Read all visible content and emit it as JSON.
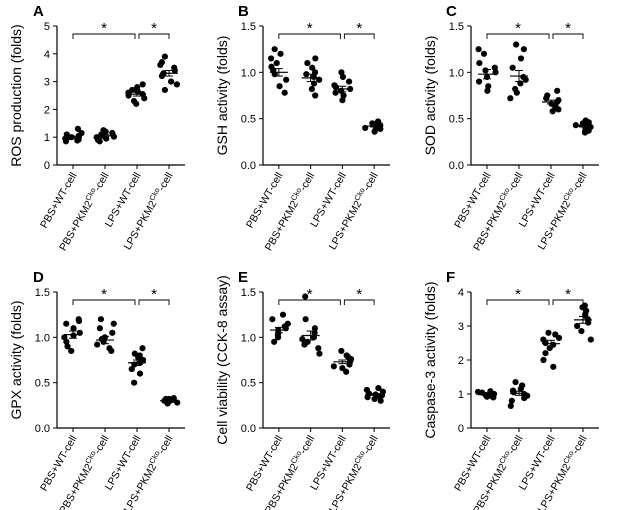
{
  "chart_data": [
    {
      "type": "scatter",
      "panel": "A",
      "ylabel": "ROS production (folds)",
      "ylim": [
        0,
        5
      ],
      "yticks": [
        0,
        1,
        2,
        3,
        4,
        5
      ],
      "ytick_labels": [
        "0",
        "1",
        "2",
        "3",
        "4",
        "5"
      ],
      "categories": [
        "PBS+WT-cell",
        "PBS+PKM2Cko-cell",
        "LPS+WT-cell",
        "LPS+PKM2Cko-cell"
      ],
      "series": [
        {
          "values": [
            0.88,
            0.95,
            1.0,
            1.05,
            1.1,
            0.92,
            0.85,
            1.15,
            1.0,
            1.3
          ]
        },
        {
          "values": [
            0.95,
            1.05,
            1.1,
            1.2,
            0.9,
            1.0,
            1.15,
            0.85,
            1.25,
            1.02
          ]
        },
        {
          "values": [
            2.2,
            2.3,
            2.4,
            2.5,
            2.55,
            2.6,
            2.65,
            2.7,
            2.8,
            2.9
          ]
        },
        {
          "values": [
            2.7,
            2.9,
            3.0,
            3.2,
            3.3,
            3.4,
            3.5,
            3.6,
            3.7,
            3.9
          ]
        }
      ],
      "means": [
        1.0,
        1.05,
        2.55,
        3.3
      ],
      "sems": [
        0.04,
        0.04,
        0.07,
        0.1
      ],
      "significance": [
        {
          "from": 0,
          "to": 2,
          "label": "*"
        },
        {
          "from": 2,
          "to": 3,
          "label": "*"
        }
      ]
    },
    {
      "type": "scatter",
      "panel": "B",
      "ylabel": "GSH activity (folds)",
      "ylim": [
        0,
        1.5
      ],
      "yticks": [
        0,
        0.5,
        1.0,
        1.5
      ],
      "ytick_labels": [
        "0.0",
        "0.5",
        "1.0",
        "1.5"
      ],
      "categories": [
        "PBS+WT-cell",
        "PBS+PKM2Cko-cell",
        "LPS+WT-cell",
        "LPS+PKM2Cko-cell"
      ],
      "series": [
        {
          "values": [
            0.78,
            0.85,
            0.92,
            0.98,
            1.02,
            1.06,
            1.1,
            1.15,
            1.2,
            1.25
          ]
        },
        {
          "values": [
            0.75,
            0.82,
            0.88,
            0.92,
            0.95,
            0.98,
            1.0,
            1.05,
            1.1,
            1.15
          ]
        },
        {
          "values": [
            0.7,
            0.75,
            0.78,
            0.8,
            0.82,
            0.84,
            0.86,
            0.9,
            0.95,
            1.0
          ]
        },
        {
          "values": [
            0.36,
            0.38,
            0.39,
            0.4,
            0.41,
            0.42,
            0.43,
            0.44,
            0.45,
            0.47
          ]
        }
      ],
      "means": [
        1.0,
        0.94,
        0.82,
        0.42
      ],
      "sems": [
        0.04,
        0.04,
        0.03,
        0.01
      ],
      "significance": [
        {
          "from": 0,
          "to": 2,
          "label": "*"
        },
        {
          "from": 2,
          "to": 3,
          "label": "*"
        }
      ]
    },
    {
      "type": "scatter",
      "panel": "C",
      "ylabel": "SOD activity (folds)",
      "ylim": [
        0,
        1.5
      ],
      "yticks": [
        0,
        0.5,
        1.0,
        1.5
      ],
      "ytick_labels": [
        "0.0",
        "0.5",
        "1.0",
        "1.5"
      ],
      "categories": [
        "PBS+WT-cell",
        "PBS+PKM2Cko-cell",
        "LPS+WT-cell",
        "LPS+PKM2Cko-cell"
      ],
      "series": [
        {
          "values": [
            0.8,
            0.85,
            0.9,
            0.95,
            1.0,
            1.02,
            1.05,
            1.1,
            1.2,
            1.25
          ]
        },
        {
          "values": [
            0.72,
            0.78,
            0.82,
            0.88,
            0.92,
            0.95,
            1.05,
            1.15,
            1.25,
            1.3
          ]
        },
        {
          "values": [
            0.58,
            0.6,
            0.62,
            0.64,
            0.66,
            0.68,
            0.7,
            0.72,
            0.75,
            0.8
          ]
        },
        {
          "values": [
            0.35,
            0.37,
            0.38,
            0.4,
            0.41,
            0.42,
            0.43,
            0.45,
            0.46,
            0.48
          ]
        }
      ],
      "means": [
        0.98,
        0.96,
        0.68,
        0.42
      ],
      "sems": [
        0.05,
        0.06,
        0.02,
        0.01
      ],
      "significance": [
        {
          "from": 0,
          "to": 2,
          "label": "*"
        },
        {
          "from": 2,
          "to": 3,
          "label": "*"
        }
      ]
    },
    {
      "type": "scatter",
      "panel": "D",
      "ylabel": "GPX activity (folds)",
      "ylim": [
        0,
        1.5
      ],
      "yticks": [
        0,
        0.5,
        1.0,
        1.5
      ],
      "ytick_labels": [
        "0.0",
        "0.5",
        "1.0",
        "1.5"
      ],
      "categories": [
        "PBS+WT-cell",
        "PBS+PKM2Cko-cell",
        "LPS+WT-cell",
        "LPS+PKM2Cko-cell"
      ],
      "series": [
        {
          "values": [
            0.85,
            0.9,
            0.95,
            1.0,
            1.02,
            1.05,
            1.1,
            1.15,
            1.18,
            1.2
          ]
        },
        {
          "values": [
            0.85,
            0.88,
            0.92,
            0.95,
            0.98,
            1.0,
            1.05,
            1.1,
            1.15,
            1.2
          ]
        },
        {
          "values": [
            0.5,
            0.6,
            0.65,
            0.7,
            0.72,
            0.75,
            0.78,
            0.8,
            0.82,
            0.88
          ]
        },
        {
          "values": [
            0.27,
            0.28,
            0.29,
            0.3,
            0.3,
            0.31,
            0.31,
            0.32,
            0.32,
            0.33
          ]
        }
      ],
      "means": [
        1.03,
        0.97,
        0.72,
        0.3
      ],
      "sems": [
        0.04,
        0.04,
        0.03,
        0.01
      ],
      "significance": [
        {
          "from": 0,
          "to": 2,
          "label": "*"
        },
        {
          "from": 2,
          "to": 3,
          "label": "*"
        }
      ]
    },
    {
      "type": "scatter",
      "panel": "E",
      "ylabel": "Cell viability (CCK-8 assay)",
      "ylim": [
        0,
        1.5
      ],
      "yticks": [
        0,
        0.5,
        1.0,
        1.5
      ],
      "ytick_labels": [
        "0.0",
        "0.5",
        "1.0",
        "1.5"
      ],
      "categories": [
        "PBS+WT-cell",
        "PBS+PKM2Cko-cell",
        "LPS+WT-cell",
        "LPS+PKM2Cko-cell"
      ],
      "series": [
        {
          "values": [
            0.95,
            1.0,
            1.02,
            1.05,
            1.08,
            1.1,
            1.12,
            1.15,
            1.2,
            1.25
          ]
        },
        {
          "values": [
            0.82,
            0.88,
            0.92,
            0.95,
            0.98,
            1.0,
            1.05,
            1.1,
            1.2,
            1.45
          ]
        },
        {
          "values": [
            0.62,
            0.66,
            0.68,
            0.7,
            0.72,
            0.74,
            0.76,
            0.78,
            0.8,
            0.85
          ]
        },
        {
          "values": [
            0.3,
            0.32,
            0.34,
            0.35,
            0.36,
            0.37,
            0.38,
            0.4,
            0.42,
            0.44
          ]
        }
      ],
      "means": [
        1.08,
        1.02,
        0.73,
        0.37
      ],
      "sems": [
        0.03,
        0.05,
        0.02,
        0.01
      ],
      "significance": [
        {
          "from": 0,
          "to": 2,
          "label": "*"
        },
        {
          "from": 2,
          "to": 3,
          "label": "*"
        }
      ]
    },
    {
      "type": "scatter",
      "panel": "F",
      "ylabel": "Caspase-3 activity (folds)",
      "ylim": [
        0,
        4
      ],
      "yticks": [
        0,
        1,
        2,
        3,
        4
      ],
      "ytick_labels": [
        "0",
        "1",
        "2",
        "3",
        "4"
      ],
      "categories": [
        "PBS+WT-cell",
        "PBS+PKM2Cko-cell",
        "LPS+WT-cell",
        "LPS+PKM2Cko-cell"
      ],
      "series": [
        {
          "values": [
            0.9,
            0.92,
            0.95,
            0.97,
            0.98,
            1.0,
            1.02,
            1.04,
            1.06,
            1.08
          ]
        },
        {
          "values": [
            0.65,
            0.8,
            0.88,
            0.95,
            1.0,
            1.05,
            1.1,
            1.15,
            1.25,
            1.35
          ]
        },
        {
          "values": [
            1.8,
            2.0,
            2.2,
            2.35,
            2.45,
            2.5,
            2.6,
            2.65,
            2.75,
            2.8
          ]
        },
        {
          "values": [
            2.6,
            2.85,
            3.0,
            3.1,
            3.2,
            3.3,
            3.35,
            3.45,
            3.55,
            3.6
          ]
        }
      ],
      "means": [
        0.98,
        1.02,
        2.48,
        3.18
      ],
      "sems": [
        0.02,
        0.06,
        0.1,
        0.1
      ],
      "significance": [
        {
          "from": 0,
          "to": 2,
          "label": "*"
        },
        {
          "from": 2,
          "to": 3,
          "label": "*"
        }
      ]
    }
  ]
}
